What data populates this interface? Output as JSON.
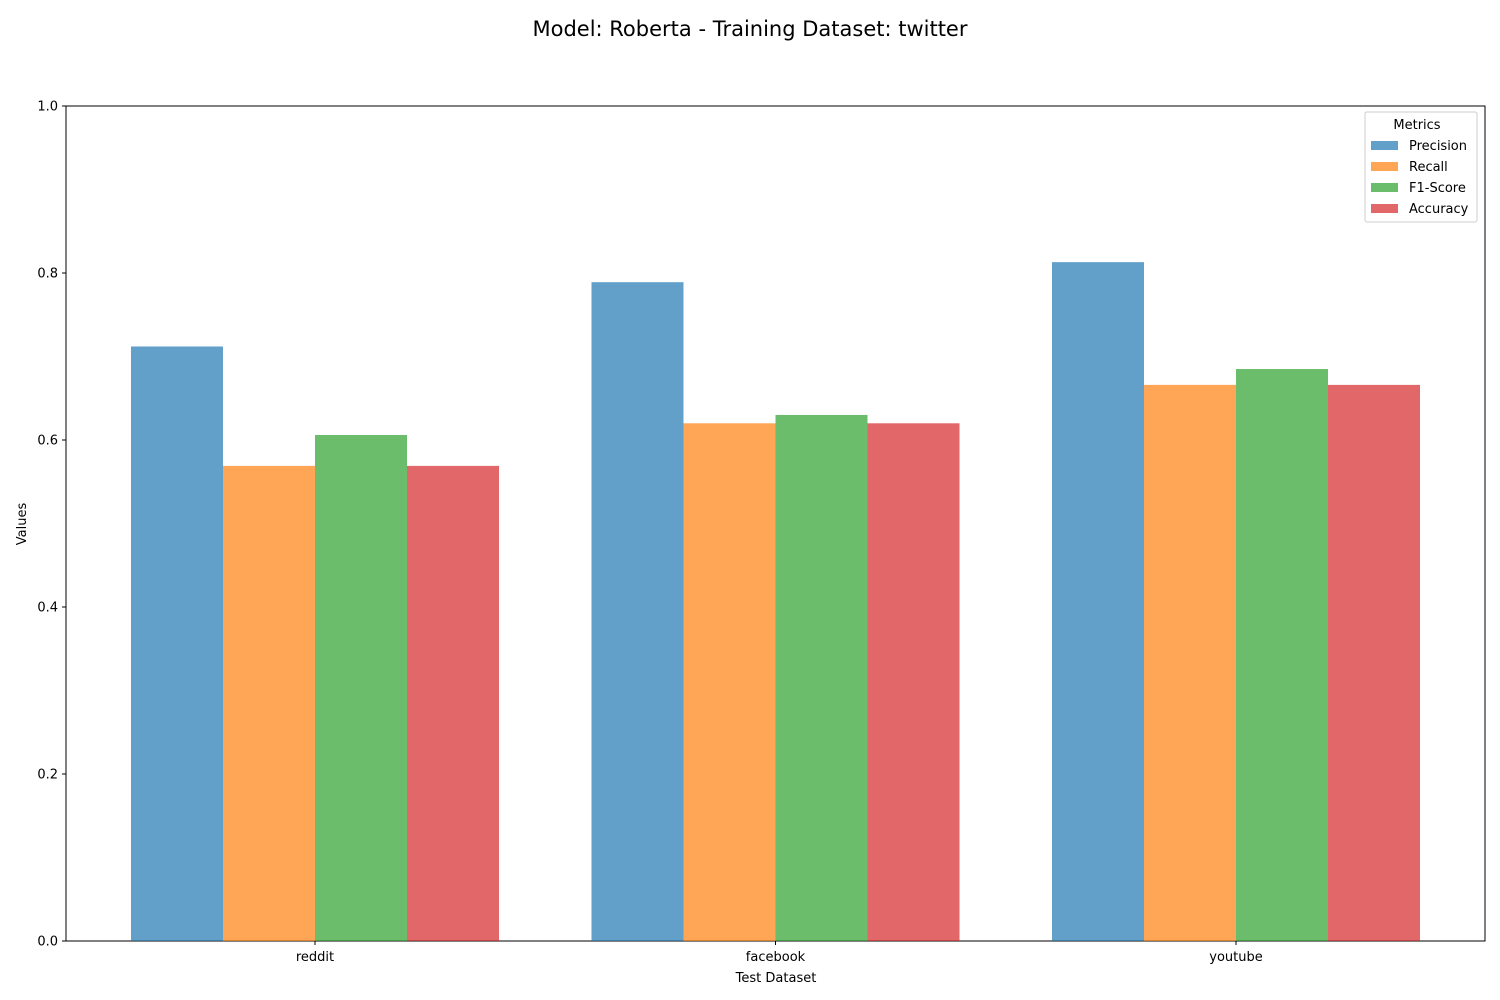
{
  "chart_data": {
    "type": "bar",
    "title": "Model: Roberta - Training Dataset: twitter",
    "xlabel": "Test Dataset",
    "ylabel": "Values",
    "ylim": [
      0,
      1.0
    ],
    "yticks": [
      "0.0",
      "0.2",
      "0.4",
      "0.6",
      "0.8",
      "1.0"
    ],
    "categories": [
      "reddit",
      "facebook",
      "youtube"
    ],
    "legend": {
      "title": "Metrics",
      "placement": "top-right"
    },
    "grid": false,
    "series": [
      {
        "name": "Precision",
        "color": "#1f77b4",
        "values": [
          0.712,
          0.789,
          0.813
        ]
      },
      {
        "name": "Recall",
        "color": "#ff7f0e",
        "values": [
          0.569,
          0.62,
          0.666
        ]
      },
      {
        "name": "F1-Score",
        "color": "#2ca02c",
        "values": [
          0.606,
          0.63,
          0.685
        ]
      },
      {
        "name": "Accuracy",
        "color": "#d62728",
        "values": [
          0.569,
          0.62,
          0.666
        ]
      }
    ]
  }
}
